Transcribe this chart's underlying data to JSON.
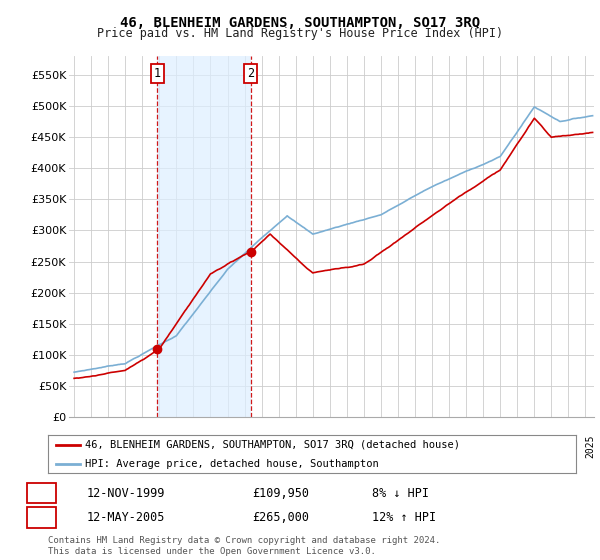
{
  "title": "46, BLENHEIM GARDENS, SOUTHAMPTON, SO17 3RQ",
  "subtitle": "Price paid vs. HM Land Registry's House Price Index (HPI)",
  "property_label": "46, BLENHEIM GARDENS, SOUTHAMPTON, SO17 3RQ (detached house)",
  "hpi_label": "HPI: Average price, detached house, Southampton",
  "transaction1_date": "12-NOV-1999",
  "transaction1_price": "£109,950",
  "transaction1_note": "8% ↓ HPI",
  "transaction2_date": "12-MAY-2005",
  "transaction2_price": "£265,000",
  "transaction2_note": "12% ↑ HPI",
  "footer": "Contains HM Land Registry data © Crown copyright and database right 2024.\nThis data is licensed under the Open Government Licence v3.0.",
  "property_color": "#cc0000",
  "hpi_color": "#7bafd4",
  "shade_color": "#ddeeff",
  "background_color": "#ffffff",
  "grid_color": "#cccccc",
  "ylim": [
    0,
    580000
  ],
  "yticks": [
    0,
    50000,
    100000,
    150000,
    200000,
    250000,
    300000,
    350000,
    400000,
    450000,
    500000,
    550000
  ],
  "transaction1_x": 1999.87,
  "transaction1_y": 109950,
  "transaction2_x": 2005.37,
  "transaction2_y": 265000,
  "xlim_left": 1994.7,
  "xlim_right": 2025.5
}
